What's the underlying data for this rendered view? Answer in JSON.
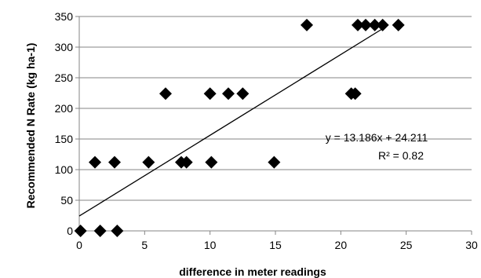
{
  "chart_data": {
    "type": "scatter",
    "title": "",
    "xlabel": "difference in meter readings",
    "ylabel": "Recommended N Rate (kg ha-1)",
    "xlim": [
      0,
      30
    ],
    "ylim": [
      0,
      350
    ],
    "x_ticks": [
      0,
      5,
      10,
      15,
      20,
      25,
      30
    ],
    "y_ticks": [
      0,
      50,
      100,
      150,
      200,
      250,
      300,
      350
    ],
    "grid": "horizontal",
    "legend": "none",
    "marker": "diamond",
    "marker_color": "#000000",
    "points": [
      {
        "x": 0.1,
        "y": 0
      },
      {
        "x": 1.6,
        "y": 0
      },
      {
        "x": 2.9,
        "y": 0
      },
      {
        "x": 1.2,
        "y": 112
      },
      {
        "x": 2.7,
        "y": 112
      },
      {
        "x": 5.3,
        "y": 112
      },
      {
        "x": 7.8,
        "y": 112
      },
      {
        "x": 8.2,
        "y": 112
      },
      {
        "x": 10.1,
        "y": 112
      },
      {
        "x": 14.9,
        "y": 112
      },
      {
        "x": 6.6,
        "y": 224
      },
      {
        "x": 10.0,
        "y": 224
      },
      {
        "x": 11.4,
        "y": 224
      },
      {
        "x": 12.5,
        "y": 224
      },
      {
        "x": 20.8,
        "y": 224
      },
      {
        "x": 21.1,
        "y": 224
      },
      {
        "x": 17.4,
        "y": 336
      },
      {
        "x": 21.3,
        "y": 336
      },
      {
        "x": 21.9,
        "y": 336
      },
      {
        "x": 22.6,
        "y": 336
      },
      {
        "x": 23.2,
        "y": 336
      },
      {
        "x": 24.4,
        "y": 336
      }
    ],
    "trendline": {
      "slope": 13.186,
      "intercept": 24.211,
      "x_range": [
        0,
        23.2
      ],
      "equation": "y = 13.186x + 24.211",
      "r_squared": "R² = 0.82"
    }
  }
}
